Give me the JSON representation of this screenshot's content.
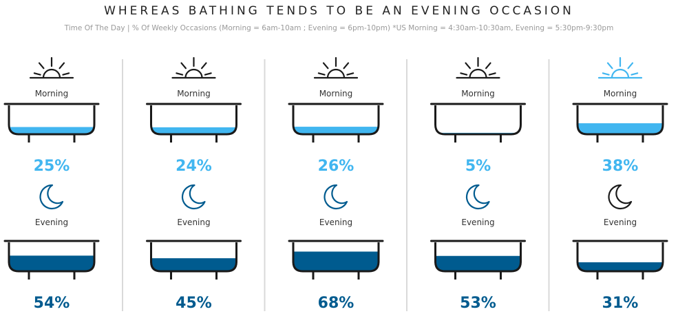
{
  "title": "WHEREAS BATHING TENDS TO BE AN EVENING OCCASION",
  "subtitle": "Time Of The Day | % Of Weekly Occasions (Morning = 6am-10am ; Evening = 6pm-10pm) *US Morning = 4:30am-10:30am, Evening = 5:30pm-9:30pm",
  "colors": {
    "morning": "#41b6f0",
    "evening": "#005b8f",
    "outline": "#1a1a1a",
    "divider": "#d9d9d9",
    "highlight_icon": "#41b6f0",
    "highlight_moon": "#1a1a1a"
  },
  "icons": {
    "morning": "sun-icon",
    "evening": "moon-icon",
    "container": "bathtub-icon"
  },
  "chart_data": {
    "type": "bar",
    "categories": [
      "1",
      "2",
      "3",
      "4",
      "5"
    ],
    "series": [
      {
        "name": "Morning",
        "values": [
          25,
          24,
          26,
          5,
          38
        ]
      },
      {
        "name": "Evening",
        "values": [
          54,
          45,
          68,
          53,
          31
        ]
      }
    ],
    "value_labels": {
      "Morning": [
        "25%",
        "24%",
        "26%",
        "5%",
        "38%"
      ],
      "Evening": [
        "54%",
        "45%",
        "68%",
        "53%",
        "31%"
      ]
    },
    "unit": "%",
    "ylim": [
      0,
      100
    ],
    "highlighted_column": 5
  }
}
